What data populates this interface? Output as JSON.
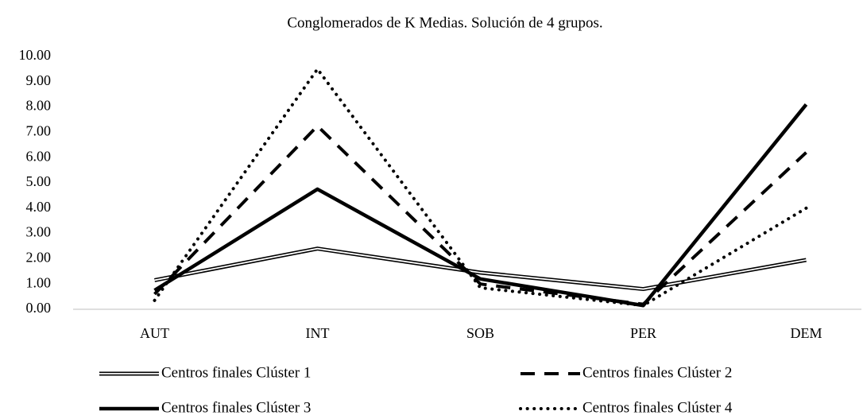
{
  "chart_data": {
    "type": "line",
    "title": "Conglomerados de K Medias. Solución de 4 grupos.",
    "categories": [
      "AUT",
      "INT",
      "SOB",
      "PER",
      "DEM"
    ],
    "series": [
      {
        "name": "Centros finales Clúster 1",
        "color": "#000000",
        "style": "double",
        "values": [
          1.15,
          2.4,
          1.45,
          0.8,
          1.95
        ]
      },
      {
        "name": "Centros finales Clúster 2",
        "color": "#000000",
        "style": "dashed",
        "values": [
          0.6,
          7.25,
          1.0,
          0.2,
          6.2
        ]
      },
      {
        "name": "Centros finales Clúster 3",
        "color": "#000000",
        "style": "solid",
        "values": [
          0.75,
          4.75,
          1.2,
          0.15,
          8.1
        ]
      },
      {
        "name": "Centros finales Clúster 4",
        "color": "#000000",
        "style": "dotted",
        "values": [
          0.35,
          9.5,
          0.85,
          0.15,
          4.0
        ]
      }
    ],
    "ylim": [
      0,
      10
    ],
    "yticks": [
      {
        "value": 0,
        "label": "0.00"
      },
      {
        "value": 1,
        "label": "1.00"
      },
      {
        "value": 2,
        "label": "2.00"
      },
      {
        "value": 3,
        "label": "3.00"
      },
      {
        "value": 4,
        "label": "4.00"
      },
      {
        "value": 5,
        "label": "5.00"
      },
      {
        "value": 6,
        "label": "6.00"
      },
      {
        "value": 7,
        "label": "7.00"
      },
      {
        "value": 8,
        "label": "8.00"
      },
      {
        "value": 9,
        "label": "9.00"
      },
      {
        "value": 10,
        "label": "10.00"
      }
    ],
    "grid": false,
    "legend": "bottom"
  }
}
